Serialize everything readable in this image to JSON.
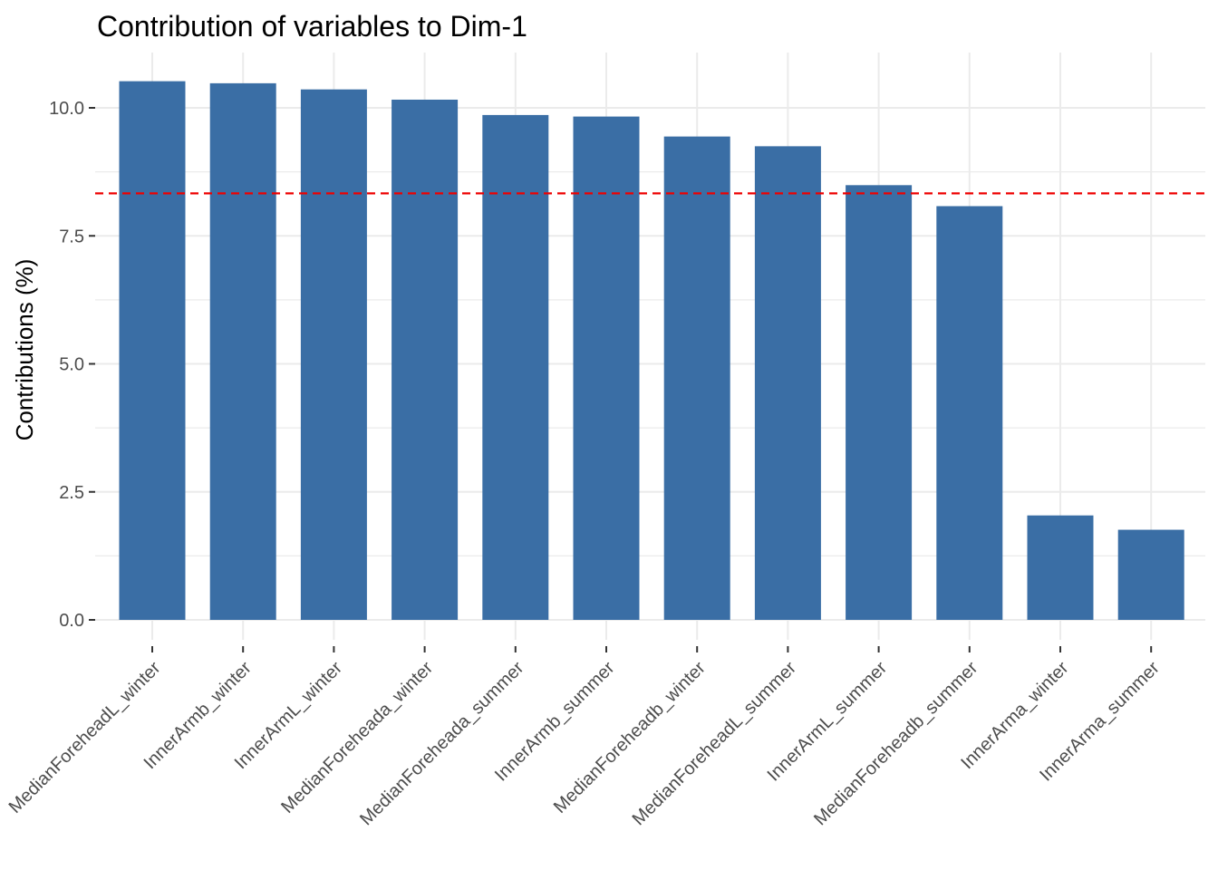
{
  "chart_data": {
    "type": "bar",
    "title": "Contribution of variables to Dim-1",
    "xlabel": "",
    "ylabel": "Contributions (%)",
    "ylim": [
      0,
      11.0
    ],
    "yticks": [
      0.0,
      2.5,
      5.0,
      7.5,
      10.0
    ],
    "ytick_labels": [
      "0.0",
      "2.5",
      "5.0",
      "7.5",
      "10.0"
    ],
    "grid": true,
    "bar_color": "#3a6ea5",
    "reference_line": {
      "value": 8.33,
      "color": "#ee0000",
      "style": "dashed"
    },
    "categories": [
      "MedianForeheadL_winter",
      "InnerArmb_winter",
      "InnerArmL_winter",
      "MedianForeheada_winter",
      "MedianForeheada_summer",
      "InnerArmb_summer",
      "MedianForeheadb_winter",
      "MedianForeheadL_summer",
      "InnerArmL_summer",
      "MedianForeheadb_summer",
      "InnerArma_winter",
      "InnerArma_summer"
    ],
    "values": [
      10.52,
      10.48,
      10.36,
      10.16,
      9.86,
      9.83,
      9.44,
      9.25,
      8.49,
      8.08,
      2.04,
      1.76
    ]
  }
}
